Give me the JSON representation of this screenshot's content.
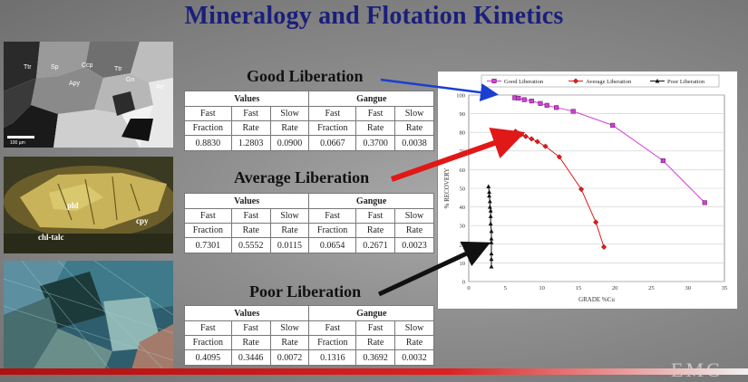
{
  "slide": {
    "title": "Mineralogy and Flotation Kinetics"
  },
  "images": {
    "micro1": {
      "labels": [
        "Ttr",
        "Sp",
        "Ccp",
        "Ttr",
        "Gn",
        "Apy",
        "Arr"
      ],
      "scale_label": "100 µm"
    },
    "micro2": {
      "labels": [
        "pld",
        "chl-talc",
        "cpy"
      ]
    }
  },
  "sections": [
    {
      "label": "Good Liberation",
      "groups": [
        "Values",
        "Gangue"
      ],
      "headers": [
        [
          "Fast",
          "Fraction"
        ],
        [
          "Fast",
          "Rate"
        ],
        [
          "Slow",
          "Rate"
        ],
        [
          "Fast",
          "Fraction"
        ],
        [
          "Fast",
          "Rate"
        ],
        [
          "Slow",
          "Rate"
        ]
      ],
      "values": [
        "0.8830",
        "1.2803",
        "0.0900",
        "0.0667",
        "0.3700",
        "0.0038"
      ],
      "arrow_color": "#1a3fd1"
    },
    {
      "label": "Average Liberation",
      "groups": [
        "Values",
        "Gangue"
      ],
      "headers": [
        [
          "Fast",
          "Fraction"
        ],
        [
          "Fast",
          "Rate"
        ],
        [
          "Slow",
          "Rate"
        ],
        [
          "Fast",
          "Fraction"
        ],
        [
          "Fast",
          "Rate"
        ],
        [
          "Slow",
          "Rate"
        ]
      ],
      "values": [
        "0.7301",
        "0.5552",
        "0.0115",
        "0.0654",
        "0.2671",
        "0.0023"
      ],
      "arrow_color": "#e01818"
    },
    {
      "label": "Poor Liberation",
      "groups": [
        "Values",
        "Gangue"
      ],
      "headers": [
        [
          "Fast",
          "Fraction"
        ],
        [
          "Fast",
          "Rate"
        ],
        [
          "Slow",
          "Rate"
        ],
        [
          "Fast",
          "Fraction"
        ],
        [
          "Fast",
          "Rate"
        ],
        [
          "Slow",
          "Rate"
        ]
      ],
      "values": [
        "0.4095",
        "0.3446",
        "0.0072",
        "0.1316",
        "0.3692",
        "0.0032"
      ],
      "arrow_color": "#111111"
    }
  ],
  "chart_data": {
    "type": "line",
    "xlabel": "GRADE %Cu",
    "ylabel": "% RECOVERY",
    "xlim": [
      0,
      35
    ],
    "ylim": [
      0,
      100
    ],
    "xticks": [
      0,
      5,
      10,
      15,
      20,
      25,
      30,
      35
    ],
    "yticks": [
      0,
      10,
      20,
      30,
      40,
      50,
      60,
      70,
      80,
      90,
      100
    ],
    "grid": true,
    "legend_position": "top",
    "series": [
      {
        "name": "Good Liberation",
        "color": "#d23fd2",
        "marker": "square",
        "x": [
          6.3,
          6.8,
          7.6,
          8.6,
          9.8,
          10.7,
          12.0,
          14.3,
          19.7,
          26.6,
          32.3
        ],
        "y": [
          98.5,
          98.3,
          97.5,
          96.8,
          95.5,
          94.5,
          93.3,
          91.3,
          83.8,
          64.8,
          42.3
        ]
      },
      {
        "name": "Average Liberation",
        "color": "#e01a1a",
        "marker": "diamond",
        "x": [
          6.4,
          6.8,
          7.2,
          7.8,
          8.6,
          9.4,
          10.5,
          12.4,
          15.4,
          17.4,
          18.5
        ],
        "y": [
          80.5,
          79.5,
          78.8,
          77.8,
          76.5,
          75.0,
          72.5,
          66.8,
          49.5,
          31.8,
          18.5
        ]
      },
      {
        "name": "Poor Liberation",
        "color": "#111111",
        "marker": "triangle",
        "x": [
          2.7,
          2.8,
          2.8,
          2.9,
          2.9,
          3.0,
          3.0,
          3.0,
          3.1,
          3.1,
          3.1,
          3.1,
          3.1,
          3.1
        ],
        "y": [
          51,
          48,
          46,
          43,
          40,
          38,
          35,
          31,
          27,
          23,
          21,
          15,
          12,
          8
        ]
      }
    ]
  },
  "footer": {
    "watermark": "EMC"
  }
}
